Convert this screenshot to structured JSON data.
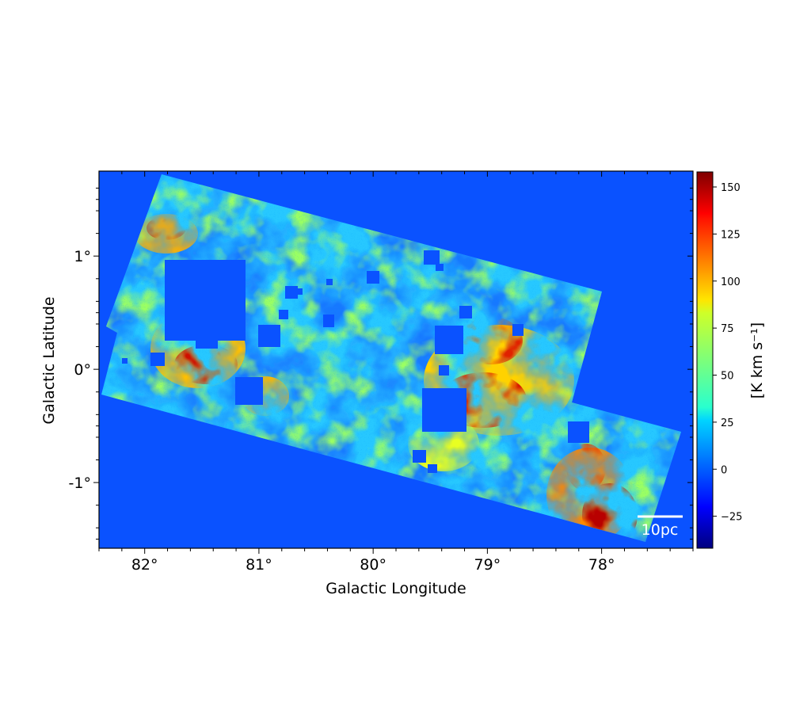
{
  "chart_data": {
    "type": "heatmap",
    "xlabel": "Galactic Longitude",
    "ylabel": "Galactic Latitude",
    "xlim": [
      82.4,
      77.2
    ],
    "ylim": [
      -1.58,
      1.75
    ],
    "x_ticks": [
      82,
      81,
      80,
      79,
      78
    ],
    "x_tick_labels": [
      "82°",
      "81°",
      "80°",
      "79°",
      "78°"
    ],
    "y_ticks": [
      1,
      0,
      -1
    ],
    "y_tick_labels": [
      "1°",
      "0°",
      "-1°"
    ],
    "colormap": "jet",
    "colorbar": {
      "label": "[K km s⁻¹]",
      "range": [
        -42,
        158
      ],
      "ticks": [
        150,
        125,
        100,
        75,
        50,
        25,
        0,
        -25
      ],
      "tick_labels": [
        "150",
        "125",
        "100",
        "75",
        "50",
        "25",
        "0",
        "−25"
      ]
    },
    "scale_bar": {
      "label": "10pc"
    },
    "background_color": "#0a52ff",
    "grid": false
  }
}
